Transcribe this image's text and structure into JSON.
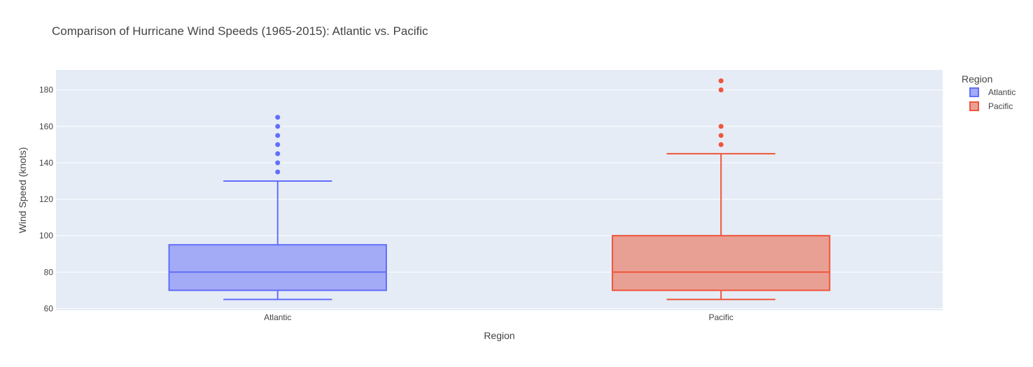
{
  "chart_data": {
    "type": "box",
    "title": "Comparison of Hurricane Wind Speeds (1965-2015): Atlantic vs. Pacific",
    "xlabel": "Region",
    "ylabel": "Wind Speed (knots)",
    "ylim": [
      59,
      191
    ],
    "yticks": [
      60,
      80,
      100,
      120,
      140,
      160,
      180
    ],
    "grid": true,
    "legend": {
      "title": "Region",
      "position": "top-right"
    },
    "categories": [
      "Atlantic",
      "Pacific"
    ],
    "series": [
      {
        "name": "Atlantic",
        "color": "#636efa",
        "fill": "#a4abf6",
        "min": 65,
        "q1": 70,
        "median": 80,
        "q3": 95,
        "max": 130,
        "outliers": [
          135,
          140,
          145,
          150,
          155,
          160,
          165
        ]
      },
      {
        "name": "Pacific",
        "color": "#ef553b",
        "fill": "#e9a094",
        "min": 65,
        "q1": 70,
        "median": 80,
        "q3": 100,
        "max": 145,
        "outliers": [
          150,
          155,
          160,
          180,
          185
        ]
      }
    ]
  },
  "colors": {
    "plot_background": "#e5ecf6",
    "gridline": "#ffffff"
  }
}
